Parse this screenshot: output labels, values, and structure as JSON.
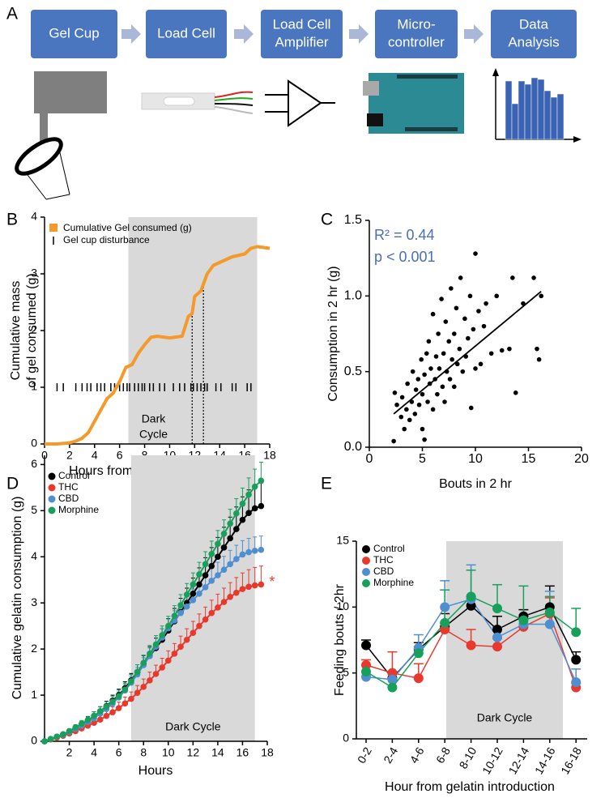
{
  "diagram": {
    "panel": "A",
    "steps": [
      [
        "Gel Cup"
      ],
      [
        "Load Cell"
      ],
      [
        "Load Cell",
        "Amplifier"
      ],
      [
        "Micro-",
        "controller"
      ],
      [
        "Data",
        "Analysis"
      ]
    ]
  },
  "chart_data": [
    {
      "type": "line",
      "panel": "B",
      "xlabel": "Hours from gelatin introduction",
      "ylabel": [
        "Cumulative mass",
        "of gel consumed (g)"
      ],
      "xlim": [
        0,
        18
      ],
      "xticks": [
        0,
        2,
        4,
        6,
        8,
        10,
        12,
        14,
        16,
        18
      ],
      "ylim": [
        0,
        4
      ],
      "yticks": [
        0,
        1,
        2,
        3,
        4
      ],
      "shade": {
        "x": [
          6.7,
          17
        ],
        "label": [
          "Dark",
          "Cycle"
        ]
      },
      "series": [
        {
          "name": "Cumulative Gel consumed (g)",
          "color": "#f39a2b",
          "x": [
            0,
            1,
            2,
            2.5,
            3,
            3.5,
            4,
            4.5,
            5,
            5.5,
            6,
            6.5,
            7,
            7.5,
            8,
            8.5,
            9,
            10,
            11,
            11.5,
            11.8,
            12,
            12.5,
            13,
            13.5,
            14,
            15,
            16,
            16.5,
            17,
            18
          ],
          "values": [
            0,
            0,
            0.02,
            0.05,
            0.1,
            0.2,
            0.4,
            0.6,
            0.8,
            0.9,
            1.1,
            1.35,
            1.4,
            1.6,
            1.75,
            1.88,
            1.9,
            1.87,
            1.9,
            2.25,
            2.3,
            2.6,
            2.7,
            3.0,
            3.15,
            3.2,
            3.3,
            3.35,
            3.45,
            3.48,
            3.45
          ]
        }
      ],
      "events": {
        "name": "Gel cup disturbance",
        "color": "#000000",
        "y": 1,
        "x": [
          1.0,
          1.5,
          2.5,
          3.0,
          3.4,
          3.7,
          4.2,
          4.5,
          4.8,
          5.3,
          5.6,
          6.0,
          6.3,
          6.6,
          6.8,
          7.2,
          7.5,
          7.8,
          8.0,
          8.4,
          8.7,
          9.2,
          9.6,
          10.3,
          10.8,
          11.2,
          11.7,
          11.9,
          12.2,
          12.5,
          12.8,
          13.0,
          13.7,
          14.1,
          15.0,
          15.3,
          16.2,
          16.5
        ]
      },
      "vlines": [
        11.8,
        12.7
      ]
    },
    {
      "type": "scatter",
      "panel": "C",
      "xlabel": "Bouts in 2 hr",
      "ylabel": "Consumption in 2 hr (g)",
      "xlim": [
        0,
        20
      ],
      "xticks": [
        0,
        5,
        10,
        15,
        20
      ],
      "ylim": [
        0,
        1.5
      ],
      "yticks": [
        {
          "value": 0,
          "label": "0.0"
        },
        0.5,
        {
          "value": 1,
          "label": "1.0"
        },
        1.5
      ],
      "color": "#000000",
      "x": [
        2.3,
        2.4,
        2.6,
        3.0,
        3.1,
        3.3,
        3.5,
        3.6,
        3.8,
        4.0,
        4.1,
        4.3,
        4.4,
        4.6,
        4.7,
        4.9,
        5.0,
        5.0,
        5.2,
        5.2,
        5.4,
        5.5,
        5.6,
        5.7,
        5.8,
        6.0,
        6.0,
        6.2,
        6.3,
        6.4,
        6.5,
        6.6,
        6.8,
        6.9,
        7.0,
        7.1,
        7.2,
        7.3,
        7.5,
        7.6,
        7.7,
        7.8,
        8.0,
        8.0,
        8.2,
        8.3,
        8.5,
        8.6,
        8.8,
        9.0,
        9.1,
        9.3,
        9.5,
        9.6,
        9.8,
        10.0,
        10.0,
        10.3,
        10.5,
        10.8,
        11.0,
        11.5,
        12.0,
        12.5,
        13.2,
        13.5,
        13.8,
        14.5,
        15.5,
        15.8,
        16.0,
        16.2
      ],
      "values": [
        0.04,
        0.36,
        0.28,
        0.2,
        0.33,
        0.12,
        0.25,
        0.42,
        0.18,
        0.3,
        0.5,
        0.22,
        0.38,
        0.45,
        0.28,
        0.58,
        0.12,
        0.35,
        0.05,
        0.48,
        0.62,
        0.3,
        0.7,
        0.42,
        0.52,
        0.25,
        0.88,
        0.45,
        0.6,
        0.35,
        0.75,
        0.52,
        0.98,
        0.4,
        0.62,
        0.3,
        0.83,
        0.5,
        0.7,
        0.45,
        1.05,
        0.58,
        0.75,
        0.4,
        0.92,
        0.55,
        0.65,
        1.12,
        0.5,
        0.85,
        0.6,
        0.72,
        1.0,
        0.26,
        0.78,
        1.28,
        0.52,
        0.9,
        0.55,
        0.8,
        0.95,
        0.62,
        1.0,
        0.64,
        0.65,
        1.12,
        0.36,
        0.95,
        1.12,
        0.65,
        0.58,
        1.0
      ],
      "fit": {
        "x": [
          2.3,
          16.2
        ],
        "values": [
          0.22,
          1.03
        ]
      },
      "annotations": [
        "R² = 0.44",
        "p < 0.001"
      ],
      "annotation_color": "#4a6eb5"
    },
    {
      "type": "line",
      "panel": "D",
      "xlabel": "Hours",
      "ylabel": "Cumulative gelatin consumption (g)",
      "xlim": [
        0,
        18
      ],
      "xticks": [
        2,
        4,
        6,
        8,
        10,
        12,
        14,
        16,
        18
      ],
      "ylim": [
        0,
        6.2
      ],
      "yticks": [
        0,
        1,
        2,
        3,
        4,
        5,
        6
      ],
      "shade": {
        "x": [
          7,
          17
        ],
        "label": [
          "Dark Cycle"
        ]
      },
      "x": [
        0,
        0.5,
        1,
        1.5,
        2,
        2.5,
        3,
        3.5,
        4,
        4.5,
        5,
        5.5,
        6,
        6.5,
        7,
        7.5,
        8,
        8.5,
        9,
        9.5,
        10,
        10.5,
        11,
        11.5,
        12,
        12.5,
        13,
        13.5,
        14,
        14.5,
        15,
        15.5,
        16,
        16.5,
        17,
        17.5
      ],
      "series": [
        {
          "name": "Control",
          "color": "#000000",
          "values": [
            0,
            0.05,
            0.1,
            0.15,
            0.2,
            0.28,
            0.36,
            0.45,
            0.55,
            0.65,
            0.76,
            0.88,
            1.0,
            1.15,
            1.32,
            1.5,
            1.68,
            1.85,
            2.02,
            2.2,
            2.4,
            2.6,
            2.8,
            3.0,
            3.2,
            3.4,
            3.6,
            3.8,
            4.0,
            4.2,
            4.4,
            4.6,
            4.8,
            4.95,
            5.05,
            5.1
          ],
          "errors": [
            0,
            0.02,
            0.03,
            0.04,
            0.05,
            0.06,
            0.07,
            0.08,
            0.09,
            0.1,
            0.11,
            0.12,
            0.13,
            0.14,
            0.15,
            0.16,
            0.18,
            0.2,
            0.22,
            0.24,
            0.26,
            0.28,
            0.3,
            0.32,
            0.34,
            0.36,
            0.38,
            0.4,
            0.42,
            0.44,
            0.46,
            0.48,
            0.5,
            0.5,
            0.5,
            0.5
          ]
        },
        {
          "name": "THC",
          "color": "#e8392c",
          "values": [
            0,
            0.04,
            0.08,
            0.12,
            0.17,
            0.22,
            0.28,
            0.34,
            0.4,
            0.47,
            0.55,
            0.63,
            0.72,
            0.82,
            0.92,
            1.05,
            1.18,
            1.32,
            1.46,
            1.6,
            1.75,
            1.9,
            2.05,
            2.2,
            2.35,
            2.5,
            2.64,
            2.78,
            2.9,
            3.02,
            3.13,
            3.22,
            3.3,
            3.35,
            3.38,
            3.4
          ],
          "errors": [
            0,
            0.02,
            0.03,
            0.04,
            0.05,
            0.06,
            0.07,
            0.08,
            0.09,
            0.1,
            0.11,
            0.12,
            0.13,
            0.14,
            0.15,
            0.16,
            0.17,
            0.18,
            0.19,
            0.2,
            0.21,
            0.22,
            0.23,
            0.24,
            0.25,
            0.26,
            0.27,
            0.28,
            0.29,
            0.3,
            0.31,
            0.33,
            0.35,
            0.37,
            0.39,
            0.4
          ]
        },
        {
          "name": "CBD",
          "color": "#4f8fd1",
          "values": [
            0,
            0.05,
            0.1,
            0.14,
            0.2,
            0.27,
            0.34,
            0.42,
            0.5,
            0.6,
            0.7,
            0.82,
            0.95,
            1.1,
            1.27,
            1.45,
            1.65,
            1.85,
            2.05,
            2.25,
            2.45,
            2.62,
            2.78,
            2.92,
            3.06,
            3.2,
            3.34,
            3.48,
            3.6,
            3.72,
            3.84,
            3.95,
            4.05,
            4.1,
            4.13,
            4.15
          ],
          "errors": [
            0,
            0.01,
            0.02,
            0.03,
            0.04,
            0.05,
            0.06,
            0.07,
            0.08,
            0.09,
            0.1,
            0.11,
            0.12,
            0.13,
            0.14,
            0.15,
            0.16,
            0.17,
            0.18,
            0.19,
            0.2,
            0.21,
            0.22,
            0.23,
            0.24,
            0.25,
            0.26,
            0.27,
            0.28,
            0.29,
            0.3,
            0.3,
            0.3,
            0.3,
            0.3,
            0.3
          ]
        },
        {
          "name": "Morphine",
          "color": "#16a05c",
          "values": [
            0,
            0.05,
            0.1,
            0.15,
            0.22,
            0.3,
            0.38,
            0.46,
            0.55,
            0.65,
            0.75,
            0.86,
            0.98,
            1.12,
            1.3,
            1.5,
            1.7,
            1.9,
            2.1,
            2.3,
            2.5,
            2.72,
            2.95,
            3.18,
            3.4,
            3.62,
            3.84,
            4.06,
            4.28,
            4.5,
            4.72,
            4.94,
            5.15,
            5.35,
            5.52,
            5.65
          ],
          "errors": [
            0,
            0.02,
            0.03,
            0.04,
            0.05,
            0.06,
            0.07,
            0.08,
            0.09,
            0.1,
            0.11,
            0.12,
            0.13,
            0.14,
            0.15,
            0.16,
            0.17,
            0.18,
            0.19,
            0.2,
            0.21,
            0.22,
            0.23,
            0.24,
            0.25,
            0.26,
            0.27,
            0.28,
            0.29,
            0.3,
            0.31,
            0.32,
            0.34,
            0.36,
            0.38,
            0.4
          ]
        }
      ],
      "annotation": {
        "text": "*"
      }
    },
    {
      "type": "line",
      "panel": "E",
      "xlabel": "Hour from gelatin introduction",
      "ylabel": "Feeding bouts / 2hr",
      "categories": [
        "0-2",
        "2-4",
        "4-6",
        "6-8",
        "8-10",
        "10-12",
        "12-14",
        "14-16",
        "16-18"
      ],
      "ylim": [
        0,
        15
      ],
      "yticks": [
        0,
        5,
        10,
        15
      ],
      "shade": {
        "label": [
          "Dark Cycle"
        ]
      },
      "series": [
        {
          "name": "Control",
          "color": "#000000",
          "values": [
            7.1,
            4.6,
            6.8,
            8.5,
            10.1,
            8.3,
            9.3,
            10.0,
            6.0
          ],
          "errors": [
            0.4,
            0.5,
            0.5,
            1.0,
            0.7,
            1.0,
            0.5,
            1.6,
            0.6
          ]
        },
        {
          "name": "THC",
          "color": "#e8392c",
          "values": [
            5.6,
            5.0,
            4.6,
            8.3,
            7.1,
            7.0,
            8.5,
            9.5,
            3.9
          ],
          "errors": [
            0.4,
            1.6,
            1.1,
            0.5,
            1.2,
            0.6,
            0.8,
            1.2,
            0.3
          ]
        },
        {
          "name": "CBD",
          "color": "#4f8fd1",
          "values": [
            4.7,
            4.5,
            6.9,
            10.0,
            10.6,
            7.7,
            8.7,
            8.7,
            4.3
          ],
          "errors": [
            0.4,
            0.5,
            1.0,
            2.0,
            2.6,
            0.8,
            0.7,
            2.5,
            1.0
          ]
        },
        {
          "name": "Morphine",
          "color": "#16a05c",
          "values": [
            5.1,
            3.9,
            6.5,
            8.8,
            10.8,
            9.9,
            9.0,
            9.6,
            8.1
          ],
          "errors": [
            0.5,
            0.6,
            0.5,
            2.5,
            2.0,
            1.8,
            2.6,
            1.2,
            1.8
          ]
        }
      ]
    }
  ]
}
